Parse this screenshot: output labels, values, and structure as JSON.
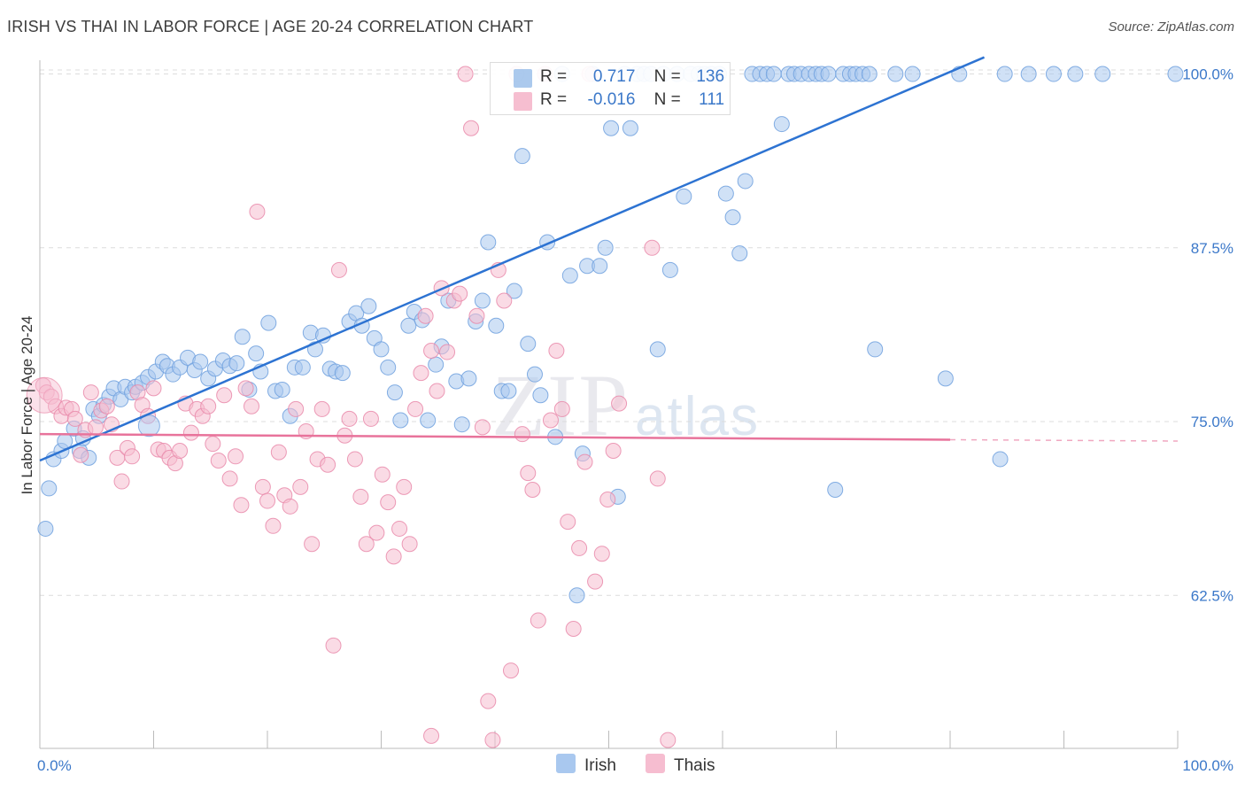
{
  "title": "IRISH VS THAI IN LABOR FORCE | AGE 20-24 CORRELATION CHART",
  "source": "Source: ZipAtlas.com",
  "watermark": {
    "zip": "ZIP",
    "atlas": "atlas"
  },
  "legend": {
    "rows": [
      {
        "r_label": "R =",
        "r_value": "0.717",
        "n_label": "N =",
        "n_value": "136",
        "color": "#8fb8e8"
      },
      {
        "r_label": "R =",
        "r_value": "-0.016",
        "n_label": "N =",
        "n_value": "111",
        "color": "#f4a9c1"
      }
    ]
  },
  "bottom_legend": [
    {
      "label": "Irish",
      "color": "#a9c8ef"
    },
    {
      "label": "Thais",
      "color": "#f6bdd0"
    }
  ],
  "chart_data": {
    "type": "scatter",
    "title": "IRISH VS THAI IN LABOR FORCE | AGE 20-24 CORRELATION CHART",
    "xlabel": "",
    "ylabel": "In Labor Force | Age 20-24",
    "xlim": [
      0,
      100
    ],
    "ylim": [
      51.5,
      101.5
    ],
    "x_tick_labels": [
      "0.0%",
      "100.0%"
    ],
    "y_ticks": [
      62.5,
      75.0,
      87.5,
      100.0
    ],
    "y_tick_labels": [
      "62.5%",
      "75.0%",
      "87.5%",
      "100.0%"
    ],
    "grid": true,
    "legend_position": "top-center",
    "series": [
      {
        "name": "Irish",
        "color": "#6fa0de",
        "fill": "#a9c8ef",
        "trend": {
          "x": [
            0,
            83
          ],
          "y": [
            72.2,
            101.2
          ]
        },
        "points": [
          [
            0.5,
            67.3
          ],
          [
            0.8,
            70.2
          ],
          [
            1.2,
            72.3
          ],
          [
            1.9,
            72.9
          ],
          [
            2.2,
            73.6
          ],
          [
            3.0,
            74.5
          ],
          [
            3.5,
            72.9
          ],
          [
            3.8,
            73.8
          ],
          [
            4.3,
            72.4
          ],
          [
            4.7,
            75.9
          ],
          [
            5.2,
            75.4
          ],
          [
            5.6,
            76.2
          ],
          [
            6.1,
            76.8
          ],
          [
            6.5,
            77.4
          ],
          [
            7.1,
            76.6
          ],
          [
            7.5,
            77.5
          ],
          [
            8.1,
            77.1
          ],
          [
            8.4,
            77.5
          ],
          [
            9.0,
            77.8
          ],
          [
            9.5,
            78.2
          ],
          [
            10.2,
            78.6
          ],
          [
            10.8,
            79.3
          ],
          [
            11.2,
            79.0
          ],
          [
            11.7,
            78.4
          ],
          [
            12.3,
            78.9
          ],
          [
            13.0,
            79.6
          ],
          [
            13.6,
            78.7
          ],
          [
            14.1,
            79.3
          ],
          [
            14.8,
            78.1
          ],
          [
            15.4,
            78.8
          ],
          [
            16.1,
            79.4
          ],
          [
            16.7,
            79.0
          ],
          [
            17.3,
            79.2
          ],
          [
            17.8,
            81.1
          ],
          [
            18.4,
            77.3
          ],
          [
            19.0,
            79.9
          ],
          [
            19.4,
            78.6
          ],
          [
            20.1,
            82.1
          ],
          [
            20.7,
            77.2
          ],
          [
            21.3,
            77.3
          ],
          [
            22.0,
            75.4
          ],
          [
            22.4,
            78.9
          ],
          [
            23.1,
            78.9
          ],
          [
            23.8,
            81.4
          ],
          [
            24.2,
            80.2
          ],
          [
            24.9,
            81.2
          ],
          [
            25.5,
            78.8
          ],
          [
            26.0,
            78.6
          ],
          [
            26.6,
            78.5
          ],
          [
            27.2,
            82.2
          ],
          [
            27.8,
            82.8
          ],
          [
            28.3,
            81.9
          ],
          [
            28.9,
            83.3
          ],
          [
            29.4,
            81.0
          ],
          [
            30.0,
            80.2
          ],
          [
            30.6,
            78.9
          ],
          [
            31.2,
            77.1
          ],
          [
            31.7,
            75.1
          ],
          [
            32.4,
            81.9
          ],
          [
            32.9,
            82.9
          ],
          [
            33.6,
            82.3
          ],
          [
            34.1,
            75.1
          ],
          [
            34.8,
            79.1
          ],
          [
            35.3,
            80.4
          ],
          [
            35.9,
            83.7
          ],
          [
            36.6,
            77.9
          ],
          [
            37.1,
            74.8
          ],
          [
            37.7,
            78.1
          ],
          [
            38.3,
            82.2
          ],
          [
            38.9,
            83.7
          ],
          [
            39.4,
            87.9
          ],
          [
            40.1,
            81.9
          ],
          [
            40.6,
            77.2
          ],
          [
            41.2,
            77.2
          ],
          [
            41.7,
            84.4
          ],
          [
            42.4,
            94.1
          ],
          [
            42.9,
            80.6
          ],
          [
            43.5,
            78.4
          ],
          [
            44.0,
            76.9
          ],
          [
            44.6,
            87.9
          ],
          [
            45.3,
            73.9
          ],
          [
            45.9,
            100.0
          ],
          [
            46.6,
            85.5
          ],
          [
            47.2,
            62.5
          ],
          [
            47.7,
            72.7
          ],
          [
            48.1,
            86.2
          ],
          [
            48.6,
            100.0
          ],
          [
            49.2,
            86.2
          ],
          [
            49.7,
            87.5
          ],
          [
            50.2,
            96.1
          ],
          [
            50.8,
            69.6
          ],
          [
            51.4,
            100.0
          ],
          [
            51.9,
            96.1
          ],
          [
            52.5,
            100.0
          ],
          [
            53.1,
            100.0
          ],
          [
            53.7,
            100.0
          ],
          [
            54.3,
            80.2
          ],
          [
            54.8,
            100.0
          ],
          [
            55.4,
            85.9
          ],
          [
            56.0,
            100.0
          ],
          [
            56.6,
            91.2
          ],
          [
            57.2,
            100.0
          ],
          [
            57.9,
            100.0
          ],
          [
            58.4,
            100.0
          ],
          [
            59.0,
            100.0
          ],
          [
            59.7,
            100.0
          ],
          [
            60.3,
            91.4
          ],
          [
            60.9,
            89.7
          ],
          [
            61.5,
            87.1
          ],
          [
            62.0,
            92.3
          ],
          [
            62.6,
            100.0
          ],
          [
            63.3,
            100.0
          ],
          [
            63.9,
            100.0
          ],
          [
            64.5,
            100.0
          ],
          [
            65.2,
            96.4
          ],
          [
            65.8,
            100.0
          ],
          [
            66.3,
            100.0
          ],
          [
            66.9,
            100.0
          ],
          [
            67.6,
            100.0
          ],
          [
            68.2,
            100.0
          ],
          [
            68.7,
            100.0
          ],
          [
            69.3,
            100.0
          ],
          [
            69.9,
            70.1
          ],
          [
            70.6,
            100.0
          ],
          [
            71.2,
            100.0
          ],
          [
            71.7,
            100.0
          ],
          [
            72.3,
            100.0
          ],
          [
            72.9,
            100.0
          ],
          [
            73.4,
            80.2
          ],
          [
            75.2,
            100.0
          ],
          [
            76.7,
            100.0
          ],
          [
            79.6,
            78.1
          ],
          [
            80.8,
            100.0
          ],
          [
            84.8,
            100.0
          ],
          [
            86.9,
            100.0
          ],
          [
            89.1,
            100.0
          ],
          [
            91.0,
            100.0
          ],
          [
            93.4,
            100.0
          ],
          [
            99.8,
            100.0
          ],
          [
            84.4,
            72.3
          ]
        ]
      },
      {
        "name": "Thais",
        "color": "#e98aaa",
        "fill": "#f6bdd0",
        "trend": {
          "x": [
            0,
            80
          ],
          "y": [
            74.1,
            73.7
          ]
        },
        "trend_dashed": {
          "x": [
            80,
            100
          ],
          "y": [
            73.7,
            73.6
          ]
        },
        "points": [
          [
            0.3,
            77.6
          ],
          [
            0.6,
            77.1
          ],
          [
            1.0,
            76.8
          ],
          [
            1.4,
            76.1
          ],
          [
            1.9,
            75.4
          ],
          [
            2.3,
            76.0
          ],
          [
            2.8,
            75.9
          ],
          [
            3.1,
            75.2
          ],
          [
            3.6,
            72.6
          ],
          [
            4.0,
            74.4
          ],
          [
            4.5,
            77.1
          ],
          [
            4.9,
            74.6
          ],
          [
            5.4,
            75.8
          ],
          [
            5.9,
            76.1
          ],
          [
            6.3,
            74.8
          ],
          [
            6.8,
            72.4
          ],
          [
            7.2,
            70.7
          ],
          [
            7.7,
            73.1
          ],
          [
            8.1,
            72.5
          ],
          [
            8.6,
            77.1
          ],
          [
            9.0,
            76.2
          ],
          [
            9.5,
            75.4
          ],
          [
            10.0,
            77.4
          ],
          [
            10.4,
            73.0
          ],
          [
            10.9,
            72.9
          ],
          [
            11.4,
            72.4
          ],
          [
            11.9,
            72.0
          ],
          [
            12.3,
            72.9
          ],
          [
            12.8,
            76.3
          ],
          [
            13.3,
            74.2
          ],
          [
            13.8,
            75.9
          ],
          [
            14.3,
            75.4
          ],
          [
            14.8,
            76.1
          ],
          [
            15.2,
            73.4
          ],
          [
            15.7,
            72.2
          ],
          [
            16.2,
            76.9
          ],
          [
            16.7,
            70.9
          ],
          [
            17.2,
            72.5
          ],
          [
            17.7,
            69.0
          ],
          [
            18.1,
            77.4
          ],
          [
            18.6,
            76.1
          ],
          [
            19.1,
            90.1
          ],
          [
            19.6,
            70.3
          ],
          [
            20.0,
            69.3
          ],
          [
            20.5,
            67.5
          ],
          [
            21.0,
            72.8
          ],
          [
            21.5,
            69.7
          ],
          [
            22.0,
            68.9
          ],
          [
            22.5,
            75.9
          ],
          [
            22.9,
            70.3
          ],
          [
            23.4,
            74.3
          ],
          [
            23.9,
            66.2
          ],
          [
            24.4,
            72.3
          ],
          [
            24.8,
            75.9
          ],
          [
            25.3,
            71.9
          ],
          [
            25.8,
            58.9
          ],
          [
            26.3,
            85.9
          ],
          [
            26.8,
            74.0
          ],
          [
            27.2,
            75.2
          ],
          [
            27.7,
            72.3
          ],
          [
            28.2,
            69.6
          ],
          [
            28.7,
            66.2
          ],
          [
            29.1,
            75.2
          ],
          [
            29.6,
            67.0
          ],
          [
            30.1,
            71.2
          ],
          [
            30.6,
            69.2
          ],
          [
            31.1,
            65.3
          ],
          [
            31.6,
            67.3
          ],
          [
            32.0,
            70.3
          ],
          [
            32.5,
            66.2
          ],
          [
            33.0,
            75.9
          ],
          [
            33.5,
            78.5
          ],
          [
            33.9,
            82.6
          ],
          [
            34.4,
            80.1
          ],
          [
            34.9,
            77.2
          ],
          [
            35.3,
            84.6
          ],
          [
            35.8,
            80.0
          ],
          [
            36.4,
            83.7
          ],
          [
            36.9,
            84.2
          ],
          [
            37.4,
            100.0
          ],
          [
            37.9,
            96.1
          ],
          [
            38.4,
            82.6
          ],
          [
            38.9,
            74.6
          ],
          [
            39.4,
            54.9
          ],
          [
            39.8,
            52.1
          ],
          [
            40.3,
            85.9
          ],
          [
            40.8,
            83.7
          ],
          [
            41.4,
            57.1
          ],
          [
            41.9,
            100.0
          ],
          [
            42.4,
            74.1
          ],
          [
            42.9,
            71.3
          ],
          [
            43.3,
            70.1
          ],
          [
            43.8,
            60.7
          ],
          [
            44.4,
            100.0
          ],
          [
            44.9,
            75.1
          ],
          [
            45.4,
            80.1
          ],
          [
            45.9,
            75.9
          ],
          [
            46.4,
            67.8
          ],
          [
            46.9,
            60.1
          ],
          [
            47.4,
            65.9
          ],
          [
            47.9,
            72.1
          ],
          [
            48.3,
            100.0
          ],
          [
            48.8,
            63.5
          ],
          [
            49.4,
            65.5
          ],
          [
            49.9,
            69.4
          ],
          [
            50.4,
            72.9
          ],
          [
            50.9,
            76.3
          ],
          [
            53.8,
            87.5
          ],
          [
            54.3,
            70.9
          ],
          [
            55.2,
            52.1
          ],
          [
            34.4,
            52.4
          ]
        ]
      }
    ]
  }
}
